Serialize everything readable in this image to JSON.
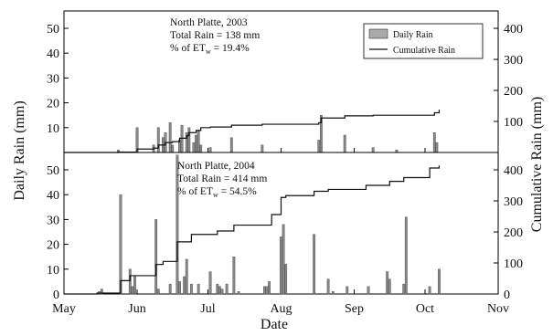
{
  "chart_data": [
    {
      "type": "bar",
      "panel": "top",
      "annotation": [
        "North Platte, 2003",
        "Total Rain = 138 mm",
        "% of ET",
        "w",
        " = 19.4%"
      ],
      "legend": [
        "Daily Rain",
        "Cumulative Rain"
      ],
      "y_left_ticks": [
        "10",
        "20",
        "30",
        "40",
        "50"
      ],
      "y_right_ticks": [
        "100",
        "200",
        "300",
        "400"
      ],
      "ylim_left": [
        0,
        57
      ],
      "ylim_right": [
        0,
        456
      ],
      "daily_rain": {
        "dates": [
          "2003-05-24",
          "2003-06-01",
          "2003-06-08",
          "2003-06-10",
          "2003-06-12",
          "2003-06-13",
          "2003-06-15",
          "2003-06-16",
          "2003-06-19",
          "2003-06-20",
          "2003-06-22",
          "2003-06-23",
          "2003-06-25",
          "2003-06-26",
          "2003-06-27",
          "2003-06-28",
          "2003-07-02",
          "2003-07-11",
          "2003-07-24",
          "2003-08-17",
          "2003-08-18",
          "2003-08-28",
          "2003-09-09",
          "2003-09-19",
          "2003-10-05",
          "2003-10-06"
        ],
        "values": [
          1,
          10,
          3,
          10,
          6,
          8,
          12,
          3,
          5,
          11,
          8,
          10,
          4,
          7,
          9,
          3,
          2,
          6,
          3,
          5,
          15,
          7,
          2,
          1,
          8,
          4
        ]
      },
      "cumulative_rain": {
        "dates": [
          "2003-05-01",
          "2003-05-24",
          "2003-06-01",
          "2003-06-08",
          "2003-06-10",
          "2003-06-13",
          "2003-06-16",
          "2003-06-19",
          "2003-06-22",
          "2003-06-23",
          "2003-06-26",
          "2003-06-28",
          "2003-07-02",
          "2003-07-11",
          "2003-07-24",
          "2003-08-17",
          "2003-08-18",
          "2003-08-28",
          "2003-09-09",
          "2003-10-05",
          "2003-10-07"
        ],
        "values": [
          0,
          1,
          11,
          14,
          24,
          32,
          35,
          46,
          54,
          64,
          71,
          80,
          82,
          88,
          91,
          96,
          111,
          118,
          120,
          128,
          138
        ]
      }
    },
    {
      "type": "bar",
      "panel": "bottom",
      "annotation": [
        "North Platte, 2004",
        "Total Rain = 414 mm",
        "% of ET",
        "w",
        " = 54.5%"
      ],
      "y_left_ticks": [
        "0",
        "10",
        "20",
        "30",
        "40",
        "50"
      ],
      "y_right_ticks": [
        "0",
        "100",
        "200",
        "300",
        "400"
      ],
      "ylim_left": [
        0,
        57
      ],
      "ylim_right": [
        0,
        456
      ],
      "daily_rain": {
        "dates": [
          "2004-05-16",
          "2004-05-17",
          "2004-05-25",
          "2004-05-29",
          "2004-05-30",
          "2004-05-31",
          "2004-06-09",
          "2004-06-10",
          "2004-06-15",
          "2004-06-18",
          "2004-06-19",
          "2004-06-21",
          "2004-06-22",
          "2004-06-24",
          "2004-06-27",
          "2004-07-02",
          "2004-07-05",
          "2004-07-06",
          "2004-07-07",
          "2004-07-09",
          "2004-07-12",
          "2004-07-14",
          "2004-07-25",
          "2004-07-26",
          "2004-07-27",
          "2004-08-01",
          "2004-08-02",
          "2004-08-03",
          "2004-08-15",
          "2004-08-21",
          "2004-08-23",
          "2004-08-29",
          "2004-09-07",
          "2004-09-15",
          "2004-09-16",
          "2004-09-22",
          "2004-09-23",
          "2004-10-03",
          "2004-10-07"
        ],
        "values": [
          1,
          2,
          40,
          10,
          3,
          7,
          30,
          2,
          4,
          56,
          5,
          7,
          14,
          4,
          4,
          9,
          4,
          3,
          2,
          4,
          15,
          1,
          3,
          3,
          5,
          23,
          28,
          12,
          24,
          6,
          1,
          3,
          3,
          9,
          6,
          4,
          31,
          3,
          10
        ]
      },
      "cumulative_rain": {
        "dates": [
          "2004-05-01",
          "2004-05-15",
          "2004-05-25",
          "2004-05-29",
          "2004-06-09",
          "2004-06-12",
          "2004-06-18",
          "2004-06-24",
          "2004-07-05",
          "2004-07-12",
          "2004-07-28",
          "2004-08-01",
          "2004-08-03",
          "2004-08-15",
          "2004-08-21",
          "2004-09-06",
          "2004-09-16",
          "2004-09-22",
          "2004-10-03",
          "2004-10-07"
        ],
        "values": [
          0,
          3,
          43,
          59,
          95,
          105,
          168,
          192,
          203,
          222,
          256,
          311,
          317,
          331,
          337,
          350,
          363,
          375,
          406,
          414
        ]
      }
    }
  ],
  "x_axis": {
    "label": "Date",
    "tick_labels": [
      "May",
      "Jun",
      "Jul",
      "Aug",
      "Sep",
      "Oct",
      "Nov"
    ]
  },
  "y_left_label": "Daily Rain (mm)",
  "y_right_label": "Cumulative Rain (mm)",
  "colors": {
    "bar_fill": "#888888",
    "bar_stroke": "#444444",
    "line": "#111111",
    "legend_swatch": "#aaaaaa"
  }
}
